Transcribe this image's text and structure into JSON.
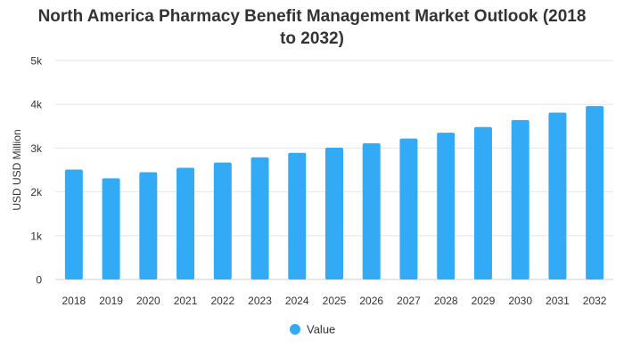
{
  "chart_data": {
    "type": "bar",
    "title_lines": [
      "North America Pharmacy Benefit Management Market Outlook (2018",
      "to 2032)"
    ],
    "ylabel": "USD USD Million",
    "xlabel": "",
    "ylim": [
      0,
      5000
    ],
    "yticks": [
      0,
      1000,
      2000,
      3000,
      4000,
      5000
    ],
    "ytick_labels": [
      "0",
      "1k",
      "2k",
      "3k",
      "4k",
      "5k"
    ],
    "categories": [
      "2018",
      "2019",
      "2020",
      "2021",
      "2022",
      "2023",
      "2024",
      "2025",
      "2026",
      "2027",
      "2028",
      "2029",
      "2030",
      "2031",
      "2032"
    ],
    "series": [
      {
        "name": "Value",
        "color": "#33aaf5",
        "values": [
          2510,
          2310,
          2450,
          2550,
          2670,
          2790,
          2890,
          3010,
          3110,
          3220,
          3350,
          3480,
          3640,
          3810,
          3960
        ]
      }
    ],
    "grid": true,
    "legend_position": "bottom-center"
  }
}
